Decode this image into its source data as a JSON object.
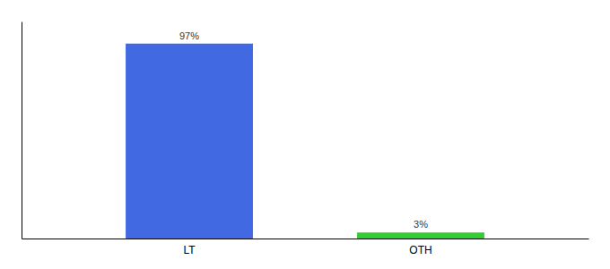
{
  "chart_data": {
    "type": "bar",
    "categories": [
      "LT",
      "OTH"
    ],
    "values": [
      97,
      3
    ],
    "value_labels": [
      "97%",
      "3%"
    ],
    "colors": [
      "#4169e1",
      "#33cc33"
    ],
    "ylim": [
      0,
      108
    ],
    "data_labels": true,
    "tick_labels": "x",
    "grid": false
  }
}
